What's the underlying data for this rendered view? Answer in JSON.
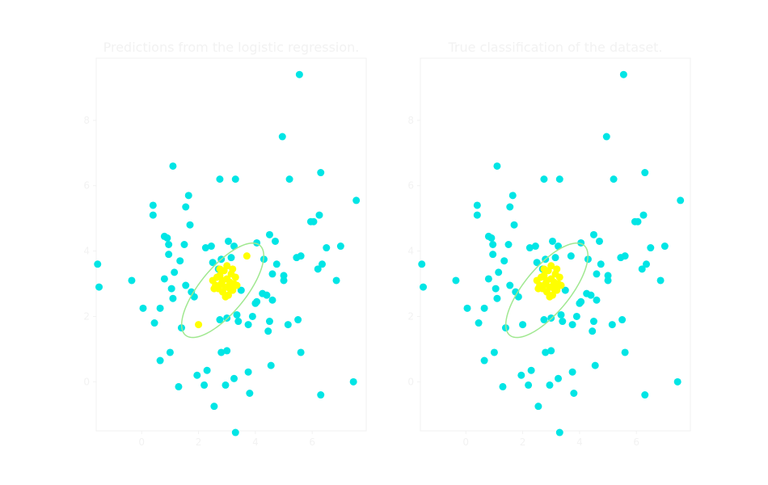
{
  "colors": {
    "class_a": "#00e5e5",
    "class_b": "#ffff00",
    "ellipse": "#a0e890",
    "text": "#f2f2f2",
    "axes": "#f2f2f2"
  },
  "chart_data": [
    {
      "type": "scatter",
      "title": "Predictions from the logistic regression.",
      "xlim": [
        -1.6,
        7.9
      ],
      "ylim": [
        -1.5,
        9.9
      ],
      "xticks": [
        0,
        2,
        4,
        6
      ],
      "yticks": [
        0,
        2,
        4,
        6,
        8
      ],
      "grid": false,
      "ellipse": {
        "center": [
          2.85,
          2.8
        ],
        "semi_axes": [
          1.9,
          0.75
        ],
        "angle_deg": 45
      },
      "series": [
        {
          "points": [
            [
              -1.55,
              3.6
            ],
            [
              -1.5,
              2.9
            ],
            [
              -0.35,
              3.1
            ],
            [
              0.05,
              2.25
            ],
            [
              0.4,
              5.4
            ],
            [
              0.4,
              5.1
            ],
            [
              0.45,
              1.8
            ],
            [
              0.65,
              2.25
            ],
            [
              0.65,
              0.65
            ],
            [
              0.8,
              4.45
            ],
            [
              0.8,
              3.15
            ],
            [
              0.9,
              4.4
            ],
            [
              0.95,
              3.9
            ],
            [
              0.95,
              4.2
            ],
            [
              1.0,
              0.9
            ],
            [
              1.05,
              2.85
            ],
            [
              1.1,
              6.6
            ],
            [
              1.1,
              2.55
            ],
            [
              1.15,
              3.35
            ],
            [
              1.3,
              -0.15
            ],
            [
              1.35,
              3.7
            ],
            [
              1.4,
              1.65
            ],
            [
              1.5,
              4.2
            ],
            [
              1.55,
              2.95
            ],
            [
              1.55,
              5.35
            ],
            [
              1.65,
              5.7
            ],
            [
              1.7,
              4.8
            ],
            [
              1.75,
              2.75
            ],
            [
              1.85,
              2.6
            ],
            [
              1.95,
              0.2
            ],
            [
              2.2,
              -0.1
            ],
            [
              2.25,
              4.1
            ],
            [
              2.3,
              0.35
            ],
            [
              2.45,
              4.15
            ],
            [
              2.5,
              3.65
            ],
            [
              2.55,
              -0.75
            ],
            [
              2.7,
              3.45
            ],
            [
              2.75,
              1.9
            ],
            [
              2.75,
              6.2
            ],
            [
              2.8,
              3.75
            ],
            [
              2.8,
              0.9
            ],
            [
              2.95,
              -0.1
            ],
            [
              3.0,
              1.95
            ],
            [
              3.0,
              0.95
            ],
            [
              3.05,
              4.3
            ],
            [
              3.15,
              3.8
            ],
            [
              3.25,
              4.15
            ],
            [
              3.25,
              0.1
            ],
            [
              3.3,
              6.2
            ],
            [
              3.3,
              -1.55
            ],
            [
              3.35,
              2.05
            ],
            [
              3.4,
              1.85
            ],
            [
              3.5,
              2.8
            ],
            [
              3.75,
              1.75
            ],
            [
              3.75,
              0.3
            ],
            [
              3.8,
              -0.35
            ],
            [
              3.9,
              2.0
            ],
            [
              4.0,
              2.4
            ],
            [
              4.05,
              2.45
            ],
            [
              4.05,
              4.25
            ],
            [
              4.25,
              2.7
            ],
            [
              4.3,
              3.75
            ],
            [
              4.4,
              2.65
            ],
            [
              4.45,
              1.55
            ],
            [
              4.5,
              1.85
            ],
            [
              4.5,
              4.5
            ],
            [
              4.55,
              0.5
            ],
            [
              4.6,
              3.3
            ],
            [
              4.6,
              2.5
            ],
            [
              4.7,
              4.3
            ],
            [
              4.75,
              3.6
            ],
            [
              4.95,
              7.5
            ],
            [
              5.0,
              3.1
            ],
            [
              5.0,
              3.25
            ],
            [
              5.15,
              1.75
            ],
            [
              5.2,
              6.2
            ],
            [
              5.45,
              3.8
            ],
            [
              5.5,
              1.9
            ],
            [
              5.55,
              9.4
            ],
            [
              5.6,
              0.9
            ],
            [
              5.6,
              3.85
            ],
            [
              5.95,
              4.9
            ],
            [
              6.05,
              4.9
            ],
            [
              6.2,
              3.45
            ],
            [
              6.25,
              5.1
            ],
            [
              6.3,
              6.4
            ],
            [
              6.3,
              -0.4
            ],
            [
              6.35,
              3.6
            ],
            [
              6.5,
              4.1
            ],
            [
              6.85,
              3.1
            ],
            [
              7.0,
              4.15
            ],
            [
              7.45,
              0.0
            ],
            [
              7.55,
              5.55
            ]
          ]
        },
        {
          "points": [
            [
              2.0,
              1.75
            ],
            [
              3.7,
              3.85
            ],
            [
              2.5,
              3.1
            ],
            [
              2.6,
              2.95
            ],
            [
              2.7,
              2.85
            ],
            [
              2.75,
              3.25
            ],
            [
              2.8,
              3.0
            ],
            [
              2.85,
              2.75
            ],
            [
              2.9,
              3.4
            ],
            [
              2.95,
              2.9
            ],
            [
              3.0,
              3.15
            ],
            [
              3.05,
              2.65
            ],
            [
              3.1,
              3.05
            ],
            [
              3.15,
              3.3
            ],
            [
              3.2,
              2.8
            ],
            [
              3.25,
              3.0
            ],
            [
              3.3,
              3.2
            ],
            [
              2.65,
              3.2
            ],
            [
              3.0,
              3.55
            ],
            [
              3.1,
              2.85
            ],
            [
              2.85,
              3.1
            ],
            [
              3.2,
              3.45
            ],
            [
              2.55,
              2.85
            ],
            [
              2.95,
              2.6
            ],
            [
              3.35,
              2.95
            ],
            [
              2.75,
              3.45
            ]
          ]
        }
      ]
    },
    {
      "type": "scatter",
      "title": "True classification of the dataset.",
      "xlim": [
        -1.6,
        7.9
      ],
      "ylim": [
        -1.5,
        9.9
      ],
      "xticks": [
        0,
        2,
        4,
        6
      ],
      "yticks": [
        0,
        2,
        4,
        6,
        8
      ],
      "grid": false,
      "ellipse": {
        "center": [
          2.85,
          2.8
        ],
        "semi_axes": [
          1.9,
          0.75
        ],
        "angle_deg": 45
      },
      "series": [
        {
          "points": [
            [
              -1.55,
              3.6
            ],
            [
              -1.5,
              2.9
            ],
            [
              -0.35,
              3.1
            ],
            [
              0.05,
              2.25
            ],
            [
              0.4,
              5.4
            ],
            [
              0.4,
              5.1
            ],
            [
              0.45,
              1.8
            ],
            [
              0.65,
              2.25
            ],
            [
              0.65,
              0.65
            ],
            [
              0.8,
              4.45
            ],
            [
              0.8,
              3.15
            ],
            [
              0.9,
              4.4
            ],
            [
              0.95,
              3.9
            ],
            [
              0.95,
              4.2
            ],
            [
              1.0,
              0.9
            ],
            [
              1.05,
              2.85
            ],
            [
              1.1,
              6.6
            ],
            [
              1.1,
              2.55
            ],
            [
              1.15,
              3.35
            ],
            [
              1.3,
              -0.15
            ],
            [
              1.35,
              3.7
            ],
            [
              1.4,
              1.65
            ],
            [
              1.5,
              4.2
            ],
            [
              1.55,
              2.95
            ],
            [
              1.55,
              5.35
            ],
            [
              1.65,
              5.7
            ],
            [
              1.7,
              4.8
            ],
            [
              1.75,
              2.75
            ],
            [
              1.85,
              2.6
            ],
            [
              1.95,
              0.2
            ],
            [
              2.0,
              1.75
            ],
            [
              2.2,
              -0.1
            ],
            [
              2.25,
              4.1
            ],
            [
              2.3,
              0.35
            ],
            [
              2.45,
              4.15
            ],
            [
              2.5,
              3.65
            ],
            [
              2.55,
              -0.75
            ],
            [
              2.7,
              3.45
            ],
            [
              2.75,
              1.9
            ],
            [
              2.75,
              6.2
            ],
            [
              2.8,
              3.75
            ],
            [
              2.8,
              0.9
            ],
            [
              2.95,
              -0.1
            ],
            [
              3.0,
              1.95
            ],
            [
              3.0,
              0.95
            ],
            [
              3.05,
              4.3
            ],
            [
              3.15,
              3.8
            ],
            [
              3.25,
              4.15
            ],
            [
              3.25,
              0.1
            ],
            [
              3.3,
              6.2
            ],
            [
              3.3,
              -1.55
            ],
            [
              3.35,
              2.05
            ],
            [
              3.4,
              1.85
            ],
            [
              3.5,
              2.8
            ],
            [
              3.7,
              3.85
            ],
            [
              3.75,
              1.75
            ],
            [
              3.75,
              0.3
            ],
            [
              3.8,
              -0.35
            ],
            [
              3.9,
              2.0
            ],
            [
              4.0,
              2.4
            ],
            [
              4.05,
              2.45
            ],
            [
              4.05,
              4.25
            ],
            [
              4.25,
              2.7
            ],
            [
              4.3,
              3.75
            ],
            [
              4.4,
              2.65
            ],
            [
              4.45,
              1.55
            ],
            [
              4.5,
              1.85
            ],
            [
              4.5,
              4.5
            ],
            [
              4.55,
              0.5
            ],
            [
              4.6,
              3.3
            ],
            [
              4.6,
              2.5
            ],
            [
              4.7,
              4.3
            ],
            [
              4.75,
              3.6
            ],
            [
              4.95,
              7.5
            ],
            [
              5.0,
              3.1
            ],
            [
              5.0,
              3.25
            ],
            [
              5.15,
              1.75
            ],
            [
              5.2,
              6.2
            ],
            [
              5.45,
              3.8
            ],
            [
              5.5,
              1.9
            ],
            [
              5.55,
              9.4
            ],
            [
              5.6,
              0.9
            ],
            [
              5.6,
              3.85
            ],
            [
              5.95,
              4.9
            ],
            [
              6.05,
              4.9
            ],
            [
              6.2,
              3.45
            ],
            [
              6.25,
              5.1
            ],
            [
              6.3,
              6.4
            ],
            [
              6.3,
              -0.4
            ],
            [
              6.35,
              3.6
            ],
            [
              6.5,
              4.1
            ],
            [
              6.85,
              3.1
            ],
            [
              7.0,
              4.15
            ],
            [
              7.45,
              0.0
            ],
            [
              7.55,
              5.55
            ]
          ]
        },
        {
          "points": [
            [
              2.5,
              3.1
            ],
            [
              2.6,
              2.95
            ],
            [
              2.7,
              2.85
            ],
            [
              2.75,
              3.25
            ],
            [
              2.8,
              3.0
            ],
            [
              2.85,
              2.75
            ],
            [
              2.9,
              3.4
            ],
            [
              2.95,
              2.9
            ],
            [
              3.0,
              3.15
            ],
            [
              3.05,
              2.65
            ],
            [
              3.1,
              3.05
            ],
            [
              3.15,
              3.3
            ],
            [
              3.2,
              2.8
            ],
            [
              3.25,
              3.0
            ],
            [
              3.3,
              3.2
            ],
            [
              2.65,
              3.2
            ],
            [
              3.0,
              3.55
            ],
            [
              3.1,
              2.85
            ],
            [
              2.85,
              3.1
            ],
            [
              3.2,
              3.45
            ],
            [
              2.55,
              2.85
            ],
            [
              2.95,
              2.6
            ],
            [
              3.35,
              2.95
            ],
            [
              2.75,
              3.45
            ]
          ]
        }
      ]
    }
  ]
}
